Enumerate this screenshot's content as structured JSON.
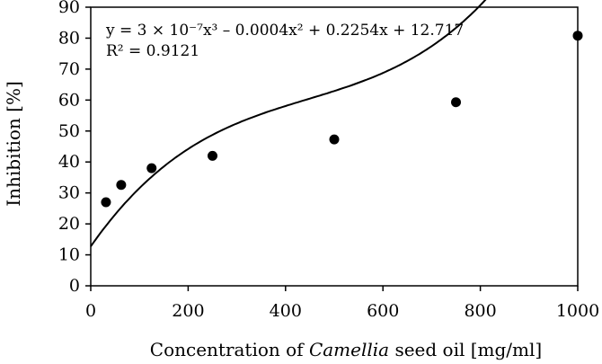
{
  "chart_data": {
    "type": "scatter",
    "title": "",
    "xlabel": {
      "prefix": "Concentration of ",
      "italic": "Camellia",
      "suffix": " seed oil [mg/ml]"
    },
    "ylabel": "Inhibition [%]",
    "xlim": [
      0,
      1000
    ],
    "ylim": [
      0,
      90
    ],
    "xticks": [
      0,
      200,
      400,
      600,
      800,
      1000
    ],
    "yticks": [
      0,
      10,
      20,
      30,
      40,
      50,
      60,
      70,
      80,
      90
    ],
    "grid": false,
    "points": [
      {
        "x": 31.25,
        "y": 27
      },
      {
        "x": 62.5,
        "y": 32.6
      },
      {
        "x": 125,
        "y": 38
      },
      {
        "x": 250,
        "y": 42
      },
      {
        "x": 500,
        "y": 47.3
      },
      {
        "x": 750,
        "y": 59.3
      },
      {
        "x": 1000,
        "y": 80.8
      }
    ],
    "trendline": {
      "type": "polynomial",
      "coefficients": {
        "a3": 3e-07,
        "a2": -0.0004,
        "a1": 0.2254,
        "a0": 12.717
      },
      "equation_text": "y = 3 × 10⁻⁷x³ – 0.0004x² + 0.2254x + 12.717",
      "r2_label": "R² = 0.9121"
    }
  }
}
